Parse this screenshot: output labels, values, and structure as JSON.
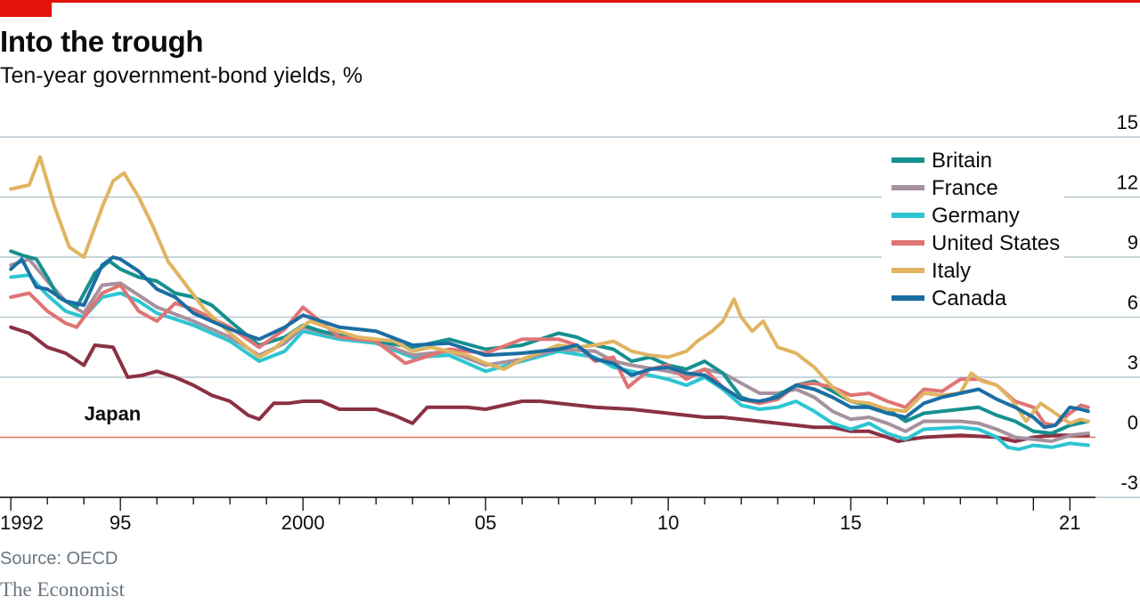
{
  "header": {
    "title": "Into the trough",
    "subtitle": "Ten-year government-bond yields, %"
  },
  "footer": {
    "source": "Source: OECD",
    "brand": "The Economist"
  },
  "colors": {
    "accent": "#e3120b",
    "grid": "#b7c6cf",
    "zero_line": "#e07060",
    "axis": "#0c0c0c"
  },
  "chart_data": {
    "type": "line",
    "title": "Into the trough",
    "subtitle": "Ten-year government-bond yields, %",
    "xlabel": "",
    "ylabel": "",
    "xlim": [
      1991.85,
      2021.7
    ],
    "ylim": [
      -3,
      15
    ],
    "yticks": [
      -3,
      0,
      3,
      6,
      9,
      12,
      15
    ],
    "xtick_labels": [
      {
        "x": 1992,
        "label": "1992"
      },
      {
        "x": 1995,
        "label": "95"
      },
      {
        "x": 2000,
        "label": "2000"
      },
      {
        "x": 2005,
        "label": "05"
      },
      {
        "x": 2010,
        "label": "10"
      },
      {
        "x": 2015,
        "label": "15"
      },
      {
        "x": 2021,
        "label": "21"
      }
    ],
    "grid": true,
    "legend_position": "top-right",
    "annotations": [
      {
        "text": "Japan",
        "x": 1994.5,
        "y": 1.2
      }
    ],
    "series": [
      {
        "name": "Italy",
        "color": "#e0b461",
        "x": [
          1992.0,
          1992.5,
          1992.8,
          1993.2,
          1993.6,
          1994.0,
          1994.5,
          1994.8,
          1995.1,
          1995.5,
          1995.9,
          1996.3,
          1996.8,
          1997.3,
          1998.0,
          1998.8,
          1999.2,
          1999.7,
          2000.2,
          2000.8,
          2001.5,
          2002.5,
          2003.0,
          2003.5,
          2004.5,
          2005.0,
          2005.5,
          2006.0,
          2007.0,
          2007.5,
          2008.0,
          2008.5,
          2009.0,
          2009.5,
          2010.0,
          2010.5,
          2010.8,
          2011.2,
          2011.5,
          2011.8,
          2012.0,
          2012.3,
          2012.6,
          2013.0,
          2013.5,
          2014.0,
          2014.5,
          2015.0,
          2015.5,
          2016.0,
          2016.5,
          2017.0,
          2017.5,
          2018.0,
          2018.3,
          2018.6,
          2019.0,
          2019.4,
          2019.8,
          2020.2,
          2020.6,
          2021.0,
          2021.3,
          2021.5
        ],
        "values": [
          12.4,
          12.6,
          14.0,
          11.5,
          9.5,
          9.0,
          11.5,
          12.8,
          13.2,
          12.0,
          10.5,
          8.8,
          7.6,
          6.4,
          5.2,
          4.0,
          4.4,
          5.2,
          5.8,
          5.4,
          5.0,
          4.8,
          4.3,
          4.5,
          4.1,
          3.7,
          3.4,
          3.9,
          4.6,
          4.5,
          4.6,
          4.8,
          4.3,
          4.1,
          4.0,
          4.3,
          4.8,
          5.3,
          5.8,
          6.9,
          6.0,
          5.3,
          5.8,
          4.5,
          4.2,
          3.5,
          2.5,
          1.8,
          1.7,
          1.4,
          1.3,
          2.2,
          2.1,
          2.2,
          3.2,
          2.8,
          2.6,
          1.9,
          0.8,
          1.7,
          1.2,
          0.7,
          0.9,
          0.8
        ]
      },
      {
        "name": "Britain",
        "color": "#15908f",
        "x": [
          1992.0,
          1992.3,
          1992.7,
          1993.0,
          1993.3,
          1993.8,
          1994.3,
          1994.7,
          1995.0,
          1995.5,
          1996.0,
          1996.5,
          1997.0,
          1997.5,
          1998.0,
          1998.8,
          1999.5,
          2000.0,
          2000.5,
          2001.0,
          2002.0,
          2003.0,
          2004.0,
          2005.0,
          2006.0,
          2007.0,
          2007.5,
          2008.0,
          2008.5,
          2009.0,
          2009.5,
          2010.0,
          2010.5,
          2011.0,
          2011.5,
          2012.0,
          2012.5,
          2013.0,
          2013.5,
          2014.0,
          2014.5,
          2015.0,
          2016.0,
          2016.5,
          2017.0,
          2018.0,
          2018.5,
          2019.0,
          2019.5,
          2020.0,
          2020.5,
          2021.0,
          2021.5
        ],
        "values": [
          9.3,
          9.1,
          8.9,
          8.0,
          7.0,
          6.5,
          8.2,
          8.8,
          8.4,
          8.0,
          7.8,
          7.2,
          7.0,
          6.6,
          5.8,
          4.6,
          5.0,
          5.6,
          5.3,
          5.1,
          4.8,
          4.5,
          4.9,
          4.4,
          4.6,
          5.2,
          5.0,
          4.6,
          4.4,
          3.8,
          4.0,
          3.6,
          3.4,
          3.8,
          3.2,
          2.0,
          1.7,
          2.1,
          2.6,
          2.8,
          2.3,
          1.8,
          1.4,
          0.8,
          1.2,
          1.4,
          1.5,
          1.1,
          0.8,
          0.3,
          0.2,
          0.6,
          0.8
        ]
      },
      {
        "name": "France",
        "color": "#a6919e",
        "x": [
          1992.0,
          1992.5,
          1993.0,
          1993.5,
          1994.0,
          1994.5,
          1995.0,
          1995.5,
          1996.0,
          1997.0,
          1998.0,
          1998.8,
          1999.5,
          2000.0,
          2001.0,
          2002.0,
          2003.0,
          2004.0,
          2005.0,
          2006.0,
          2007.0,
          2008.0,
          2008.5,
          2009.0,
          2010.0,
          2010.5,
          2011.0,
          2011.5,
          2012.0,
          2012.5,
          2013.0,
          2013.5,
          2014.0,
          2014.5,
          2015.0,
          2015.5,
          2016.0,
          2016.5,
          2017.0,
          2018.0,
          2018.5,
          2019.0,
          2019.5,
          2020.0,
          2020.5,
          2021.0,
          2021.5
        ],
        "values": [
          8.6,
          8.9,
          7.8,
          6.8,
          6.2,
          7.6,
          7.7,
          7.1,
          6.5,
          5.8,
          5.0,
          4.1,
          4.7,
          5.5,
          5.0,
          4.8,
          4.1,
          4.3,
          3.6,
          3.9,
          4.4,
          4.3,
          3.8,
          3.6,
          3.3,
          3.1,
          3.4,
          3.2,
          2.7,
          2.2,
          2.2,
          2.4,
          2.0,
          1.3,
          0.9,
          1.0,
          0.7,
          0.3,
          0.8,
          0.8,
          0.7,
          0.4,
          0.0,
          -0.1,
          -0.2,
          0.1,
          0.2
        ]
      },
      {
        "name": "Germany",
        "color": "#2dc5d2",
        "x": [
          1992.0,
          1992.5,
          1993.0,
          1993.5,
          1994.0,
          1994.5,
          1995.0,
          1995.5,
          1996.0,
          1997.0,
          1998.0,
          1998.8,
          1999.5,
          2000.0,
          2001.0,
          2002.0,
          2003.0,
          2004.0,
          2005.0,
          2006.0,
          2007.0,
          2008.0,
          2008.5,
          2009.0,
          2010.0,
          2010.5,
          2011.0,
          2011.5,
          2012.0,
          2012.5,
          2013.0,
          2013.5,
          2014.0,
          2014.5,
          2015.0,
          2015.5,
          2016.0,
          2016.5,
          2017.0,
          2018.0,
          2018.5,
          2019.0,
          2019.3,
          2019.6,
          2020.0,
          2020.5,
          2021.0,
          2021.5
        ],
        "values": [
          8.0,
          8.1,
          7.1,
          6.3,
          6.0,
          7.0,
          7.2,
          6.8,
          6.2,
          5.6,
          4.8,
          3.8,
          4.3,
          5.3,
          4.9,
          4.7,
          4.0,
          4.1,
          3.3,
          3.8,
          4.3,
          4.0,
          3.5,
          3.3,
          2.9,
          2.6,
          3.0,
          2.4,
          1.6,
          1.4,
          1.5,
          1.8,
          1.3,
          0.7,
          0.4,
          0.7,
          0.2,
          -0.1,
          0.4,
          0.5,
          0.4,
          0.0,
          -0.5,
          -0.6,
          -0.4,
          -0.5,
          -0.3,
          -0.4
        ]
      },
      {
        "name": "United States",
        "color": "#df7474",
        "x": [
          1992.0,
          1992.5,
          1993.0,
          1993.5,
          1993.8,
          1994.5,
          1995.0,
          1995.5,
          1996.0,
          1996.5,
          1997.0,
          1998.0,
          1998.8,
          1999.5,
          2000.0,
          2001.0,
          2002.0,
          2002.8,
          2003.5,
          2004.0,
          2005.0,
          2006.0,
          2007.0,
          2007.5,
          2008.0,
          2008.5,
          2008.9,
          2009.5,
          2010.0,
          2010.5,
          2011.0,
          2011.5,
          2012.0,
          2012.5,
          2013.0,
          2013.5,
          2014.0,
          2014.5,
          2015.0,
          2015.5,
          2016.0,
          2016.5,
          2017.0,
          2017.5,
          2018.0,
          2018.5,
          2019.0,
          2019.5,
          2020.0,
          2020.3,
          2020.6,
          2021.0,
          2021.3,
          2021.5
        ],
        "values": [
          7.0,
          7.2,
          6.3,
          5.7,
          5.5,
          7.2,
          7.6,
          6.3,
          5.8,
          6.7,
          6.4,
          5.5,
          4.5,
          5.4,
          6.5,
          5.0,
          4.8,
          3.7,
          4.1,
          4.4,
          4.2,
          4.9,
          4.9,
          4.6,
          3.8,
          4.0,
          2.5,
          3.4,
          3.6,
          2.9,
          3.4,
          2.5,
          1.9,
          1.7,
          1.9,
          2.6,
          2.7,
          2.5,
          2.1,
          2.2,
          1.8,
          1.5,
          2.4,
          2.3,
          2.9,
          2.9,
          2.6,
          1.8,
          1.5,
          0.7,
          0.6,
          1.2,
          1.6,
          1.5
        ]
      },
      {
        "name": "Canada",
        "color": "#1a6ea3",
        "x": [
          1992.0,
          1992.3,
          1992.7,
          1993.0,
          1993.5,
          1994.0,
          1994.5,
          1994.8,
          1995.0,
          1995.5,
          1996.0,
          1996.5,
          1997.0,
          1998.0,
          1998.8,
          1999.5,
          2000.0,
          2000.5,
          2001.0,
          2002.0,
          2003.0,
          2004.0,
          2005.0,
          2006.0,
          2007.0,
          2007.5,
          2008.0,
          2008.5,
          2009.0,
          2009.5,
          2010.0,
          2010.5,
          2011.0,
          2011.5,
          2012.0,
          2012.5,
          2013.0,
          2013.5,
          2014.0,
          2014.5,
          2015.0,
          2015.5,
          2016.0,
          2016.5,
          2017.0,
          2017.5,
          2018.0,
          2018.5,
          2019.0,
          2019.5,
          2020.0,
          2020.3,
          2020.6,
          2021.0,
          2021.3,
          2021.5
        ],
        "values": [
          8.4,
          8.9,
          7.5,
          7.4,
          6.8,
          6.6,
          8.6,
          9.0,
          8.9,
          8.3,
          7.4,
          7.0,
          6.2,
          5.4,
          4.9,
          5.5,
          6.1,
          5.8,
          5.5,
          5.3,
          4.6,
          4.7,
          4.1,
          4.2,
          4.4,
          4.6,
          3.9,
          3.7,
          3.1,
          3.4,
          3.5,
          3.2,
          3.1,
          2.5,
          1.9,
          1.8,
          2.0,
          2.6,
          2.4,
          2.0,
          1.5,
          1.5,
          1.2,
          1.0,
          1.7,
          2.0,
          2.2,
          2.4,
          1.9,
          1.5,
          1.0,
          0.5,
          0.6,
          1.5,
          1.4,
          1.3
        ]
      },
      {
        "name": "Japan",
        "color": "#8b3144",
        "x": [
          1992.0,
          1992.5,
          1993.0,
          1993.5,
          1994.0,
          1994.3,
          1994.8,
          1995.2,
          1995.6,
          1996.0,
          1996.5,
          1997.0,
          1997.5,
          1998.0,
          1998.5,
          1998.8,
          1999.2,
          1999.6,
          2000.0,
          2000.5,
          2001.0,
          2001.5,
          2002.0,
          2002.5,
          2003.0,
          2003.4,
          2003.8,
          2004.5,
          2005.0,
          2006.0,
          2006.5,
          2007.0,
          2007.5,
          2008.0,
          2009.0,
          2010.0,
          2010.5,
          2011.0,
          2011.5,
          2012.0,
          2012.5,
          2013.0,
          2013.5,
          2014.0,
          2014.5,
          2015.0,
          2015.5,
          2016.0,
          2016.3,
          2016.6,
          2017.0,
          2018.0,
          2019.0,
          2019.5,
          2020.0,
          2020.5,
          2021.0,
          2021.5
        ],
        "values": [
          5.5,
          5.2,
          4.5,
          4.2,
          3.6,
          4.6,
          4.5,
          3.0,
          3.1,
          3.3,
          3.0,
          2.6,
          2.1,
          1.8,
          1.1,
          0.9,
          1.7,
          1.7,
          1.8,
          1.8,
          1.4,
          1.4,
          1.4,
          1.1,
          0.7,
          1.5,
          1.5,
          1.5,
          1.4,
          1.8,
          1.8,
          1.7,
          1.6,
          1.5,
          1.4,
          1.2,
          1.1,
          1.0,
          1.0,
          0.9,
          0.8,
          0.7,
          0.6,
          0.5,
          0.5,
          0.3,
          0.3,
          0.0,
          -0.2,
          -0.1,
          0.0,
          0.1,
          0.0,
          -0.2,
          0.0,
          0.1,
          0.1,
          0.1
        ]
      }
    ],
    "legend_order": [
      "Britain",
      "France",
      "Germany",
      "United States",
      "Italy",
      "Canada"
    ]
  }
}
